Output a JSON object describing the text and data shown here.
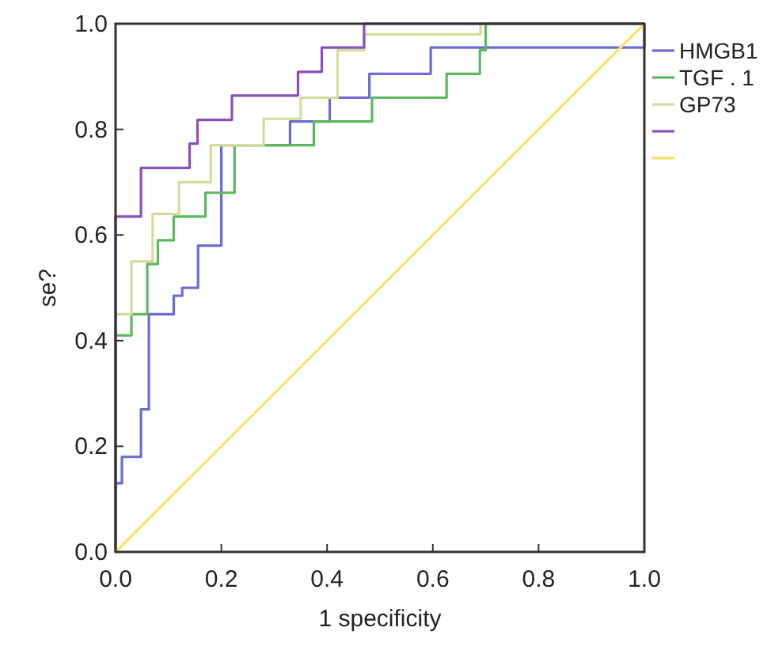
{
  "chart_data": {
    "type": "line",
    "xlabel": "1 specificity",
    "ylabel": "se?",
    "xlim": [
      0,
      1
    ],
    "ylim": [
      0,
      1
    ],
    "xticks": [
      {
        "value": 0,
        "label": "0.0"
      },
      {
        "value": 0.2,
        "label": "0.2"
      },
      {
        "value": 0.4,
        "label": "0.4"
      },
      {
        "value": 0.6,
        "label": "0.6"
      },
      {
        "value": 0.8,
        "label": "0.8"
      },
      {
        "value": 1,
        "label": "1.0"
      }
    ],
    "yticks": [
      {
        "value": 0,
        "label": "0.0"
      },
      {
        "value": 0.2,
        "label": "0.2"
      },
      {
        "value": 0.4,
        "label": "0.4"
      },
      {
        "value": 0.6,
        "label": "0.6"
      },
      {
        "value": 0.8,
        "label": "0.8"
      },
      {
        "value": 1,
        "label": "1.0"
      }
    ],
    "grid": false,
    "legend": "right",
    "marker": "none",
    "line_style": "solid",
    "series": [
      {
        "name": "HMGB1",
        "color": "#6b6bd6",
        "x": [
          0,
          0,
          0.012,
          0.012,
          0.048,
          0.048,
          0.063,
          0.063,
          0.11,
          0.11,
          0.126,
          0.126,
          0.156,
          0.156,
          0.2,
          0.2,
          0.33,
          0.33,
          0.405,
          0.405,
          0.48,
          0.48,
          0.596,
          0.596,
          1,
          1
        ],
        "values": [
          0,
          0.13,
          0.13,
          0.18,
          0.18,
          0.27,
          0.27,
          0.45,
          0.45,
          0.485,
          0.485,
          0.5,
          0.5,
          0.58,
          0.58,
          0.77,
          0.77,
          0.815,
          0.815,
          0.86,
          0.86,
          0.905,
          0.905,
          0.955,
          0.955,
          1
        ]
      },
      {
        "name": "TGF . 1",
        "color": "#5cb85c",
        "x": [
          0,
          0,
          0.03,
          0.03,
          0.06,
          0.06,
          0.08,
          0.08,
          0.11,
          0.11,
          0.17,
          0.17,
          0.225,
          0.225,
          0.375,
          0.375,
          0.485,
          0.485,
          0.626,
          0.626,
          0.689,
          0.689,
          0.7,
          0.7,
          1
        ],
        "values": [
          0,
          0.41,
          0.41,
          0.45,
          0.45,
          0.545,
          0.545,
          0.59,
          0.59,
          0.635,
          0.635,
          0.68,
          0.68,
          0.77,
          0.77,
          0.815,
          0.815,
          0.86,
          0.86,
          0.905,
          0.905,
          0.95,
          0.95,
          1,
          1
        ]
      },
      {
        "name": "GP73",
        "color": "#d4dc9c",
        "x": [
          0,
          0,
          0.03,
          0.03,
          0.07,
          0.07,
          0.12,
          0.12,
          0.18,
          0.18,
          0.28,
          0.28,
          0.35,
          0.35,
          0.42,
          0.42,
          0.47,
          0.47,
          0.69,
          0.69,
          1
        ],
        "values": [
          0,
          0.45,
          0.45,
          0.55,
          0.55,
          0.64,
          0.64,
          0.7,
          0.7,
          0.77,
          0.77,
          0.82,
          0.82,
          0.86,
          0.86,
          0.95,
          0.95,
          0.98,
          0.98,
          1,
          1
        ]
      },
      {
        "color": "#8a4fbf",
        "x": [
          0,
          0,
          0.048,
          0.048,
          0.14,
          0.14,
          0.155,
          0.155,
          0.22,
          0.22,
          0.345,
          0.345,
          0.39,
          0.39,
          0.47,
          0.47,
          1
        ],
        "values": [
          0,
          0.635,
          0.635,
          0.727,
          0.727,
          0.773,
          0.773,
          0.818,
          0.818,
          0.864,
          0.864,
          0.909,
          0.909,
          0.955,
          0.955,
          1,
          1
        ]
      },
      {
        "color": "#f5e66a",
        "x": [
          0,
          1
        ],
        "values": [
          0,
          1
        ]
      }
    ]
  }
}
